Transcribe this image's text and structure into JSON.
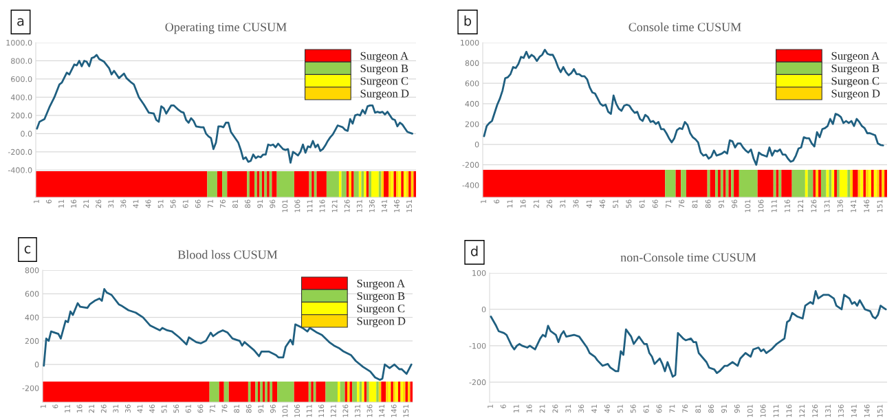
{
  "chart_data": [
    {
      "type": "line",
      "title": "Operating time CUSUM",
      "annotations": [
        "a"
      ],
      "grid": "y",
      "legend": "top right",
      "xlim": [
        0.5,
        153.5
      ],
      "xticks": [
        1,
        6,
        11,
        16,
        21,
        26,
        31,
        36,
        41,
        46,
        51,
        56,
        61,
        66,
        71,
        76,
        81,
        86,
        91,
        96,
        101,
        106,
        111,
        116,
        121,
        126,
        131,
        136,
        141,
        146,
        151
      ],
      "ylim": [
        -700,
        1000
      ],
      "yticks": [
        {
          "value": 1000,
          "label": "1000.0"
        },
        {
          "value": 800,
          "label": "800.0"
        },
        {
          "value": 600,
          "label": "600.0"
        },
        {
          "value": 400,
          "label": "400.0"
        },
        {
          "value": 200,
          "label": "200.0"
        },
        {
          "value": 0,
          "label": "0.0"
        },
        {
          "value": -200,
          "label": "-200.0"
        },
        {
          "value": -400,
          "label": "-400.0"
        }
      ],
      "series": [
        {
          "color": "#1f5f80",
          "x": [
            1,
            2,
            4,
            6,
            8,
            10,
            11,
            13,
            14,
            16,
            17,
            18,
            19,
            20,
            21,
            22,
            23,
            24,
            25,
            26,
            28,
            30,
            31,
            32,
            34,
            36,
            37,
            39,
            40,
            42,
            44,
            46,
            48,
            49,
            50,
            51,
            52,
            53,
            55,
            56,
            58,
            59,
            60,
            61,
            62,
            63,
            64,
            65,
            67,
            68,
            69,
            70,
            71,
            72,
            73,
            74,
            75,
            76,
            77,
            78,
            79,
            80,
            81,
            82,
            83,
            84,
            85,
            86,
            87,
            88,
            89,
            90,
            91,
            92,
            93,
            94,
            95,
            96,
            97,
            98,
            99,
            100,
            101,
            102,
            103,
            104,
            105,
            106,
            107,
            108,
            109,
            110,
            111,
            112,
            113,
            114,
            115,
            116,
            117,
            118,
            119,
            120,
            121,
            122,
            123,
            124,
            125,
            126,
            127,
            128,
            129,
            130,
            131,
            132,
            133,
            134,
            135,
            136,
            137,
            138,
            139,
            140,
            141,
            142,
            143,
            144,
            145,
            146,
            147,
            148,
            149,
            150,
            152
          ],
          "values": [
            55,
            130,
            160,
            290,
            400,
            540,
            560,
            670,
            650,
            760,
            750,
            800,
            740,
            800,
            790,
            740,
            830,
            840,
            865,
            820,
            790,
            720,
            650,
            690,
            610,
            660,
            610,
            560,
            540,
            400,
            320,
            230,
            220,
            150,
            130,
            300,
            280,
            220,
            310,
            310,
            260,
            240,
            230,
            150,
            120,
            170,
            140,
            80,
            70,
            70,
            0,
            -30,
            -50,
            -170,
            -100,
            80,
            80,
            70,
            120,
            120,
            20,
            -20,
            -60,
            -100,
            -180,
            -280,
            -260,
            -310,
            -300,
            -230,
            -270,
            -250,
            -260,
            -230,
            -230,
            -120,
            -130,
            -120,
            -150,
            -110,
            -140,
            -170,
            -180,
            -170,
            -320,
            -200,
            -220,
            -240,
            -200,
            -120,
            -210,
            -140,
            -150,
            -80,
            -150,
            -120,
            -190,
            -170,
            -130,
            -80,
            -40,
            -10,
            40,
            90,
            80,
            70,
            40,
            30,
            160,
            110,
            200,
            210,
            200,
            260,
            220,
            300,
            310,
            310,
            230,
            240,
            230,
            240,
            210,
            240,
            200,
            160,
            150,
            80,
            120,
            100,
            60,
            20,
            0
          ]
        }
      ],
      "bands": [
        {
          "axis": "x",
          "from": 0.5,
          "to": 69.5,
          "color": "#ff0000",
          "label": "Surgeon A"
        },
        {
          "axis": "x",
          "from": 69.5,
          "to": 73.5,
          "color": "#92d050",
          "label": "Surgeon B"
        },
        {
          "axis": "x",
          "from": 73.5,
          "to": 75.5,
          "color": "#ff0000"
        },
        {
          "axis": "x",
          "from": 75.5,
          "to": 77.5,
          "color": "#92d050"
        },
        {
          "axis": "x",
          "from": 77.5,
          "to": 85.5,
          "color": "#ff0000"
        },
        {
          "axis": "x",
          "from": 85.5,
          "to": 86.5,
          "color": "#92d050"
        },
        {
          "axis": "x",
          "from": 86.5,
          "to": 88.5,
          "color": "#ff0000"
        },
        {
          "axis": "x",
          "from": 88.5,
          "to": 89.5,
          "color": "#92d050"
        },
        {
          "axis": "x",
          "from": 89.5,
          "to": 90.5,
          "color": "#ff0000"
        },
        {
          "axis": "x",
          "from": 90.5,
          "to": 91.5,
          "color": "#92d050"
        },
        {
          "axis": "x",
          "from": 91.5,
          "to": 92.5,
          "color": "#ff0000"
        },
        {
          "axis": "x",
          "from": 92.5,
          "to": 93.5,
          "color": "#92d050"
        },
        {
          "axis": "x",
          "from": 93.5,
          "to": 94.5,
          "color": "#ff0000"
        },
        {
          "axis": "x",
          "from": 94.5,
          "to": 95.5,
          "color": "#92d050"
        },
        {
          "axis": "x",
          "from": 95.5,
          "to": 97.5,
          "color": "#ff0000"
        },
        {
          "axis": "x",
          "from": 97.5,
          "to": 104.5,
          "color": "#92d050"
        },
        {
          "axis": "x",
          "from": 104.5,
          "to": 110.5,
          "color": "#ff0000"
        },
        {
          "axis": "x",
          "from": 110.5,
          "to": 111.5,
          "color": "#92d050"
        },
        {
          "axis": "x",
          "from": 111.5,
          "to": 112.5,
          "color": "#ff0000"
        },
        {
          "axis": "x",
          "from": 112.5,
          "to": 113.5,
          "color": "#92d050"
        },
        {
          "axis": "x",
          "from": 113.5,
          "to": 117.5,
          "color": "#ff0000"
        },
        {
          "axis": "x",
          "from": 117.5,
          "to": 122.5,
          "color": "#92d050"
        },
        {
          "axis": "x",
          "from": 122.5,
          "to": 123.5,
          "color": "#ffff00",
          "label": "Surgeon C"
        },
        {
          "axis": "x",
          "from": 123.5,
          "to": 125.5,
          "color": "#92d050"
        },
        {
          "axis": "x",
          "from": 125.5,
          "to": 126.5,
          "color": "#ff0000"
        },
        {
          "axis": "x",
          "from": 126.5,
          "to": 127.5,
          "color": "#ffd700",
          "label": "Surgeon D"
        },
        {
          "axis": "x",
          "from": 127.5,
          "to": 128.5,
          "color": "#ff0000"
        },
        {
          "axis": "x",
          "from": 128.5,
          "to": 130.5,
          "color": "#92d050"
        },
        {
          "axis": "x",
          "from": 130.5,
          "to": 131.5,
          "color": "#ffff00"
        },
        {
          "axis": "x",
          "from": 131.5,
          "to": 132.5,
          "color": "#92d050"
        },
        {
          "axis": "x",
          "from": 132.5,
          "to": 133.5,
          "color": "#ffff00"
        },
        {
          "axis": "x",
          "from": 133.5,
          "to": 134.5,
          "color": "#ff0000"
        },
        {
          "axis": "x",
          "from": 134.5,
          "to": 135.5,
          "color": "#92d050"
        },
        {
          "axis": "x",
          "from": 135.5,
          "to": 138.5,
          "color": "#ffff00"
        },
        {
          "axis": "x",
          "from": 138.5,
          "to": 139.5,
          "color": "#92d050"
        },
        {
          "axis": "x",
          "from": 139.5,
          "to": 140.5,
          "color": "#ffd700"
        },
        {
          "axis": "x",
          "from": 140.5,
          "to": 142.5,
          "color": "#ff0000"
        },
        {
          "axis": "x",
          "from": 142.5,
          "to": 143.5,
          "color": "#ffd700"
        },
        {
          "axis": "x",
          "from": 143.5,
          "to": 144.5,
          "color": "#ffff00"
        },
        {
          "axis": "x",
          "from": 144.5,
          "to": 145.5,
          "color": "#ff0000"
        },
        {
          "axis": "x",
          "from": 145.5,
          "to": 146.5,
          "color": "#ffd700"
        },
        {
          "axis": "x",
          "from": 146.5,
          "to": 147.5,
          "color": "#ffff00"
        },
        {
          "axis": "x",
          "from": 147.5,
          "to": 148.5,
          "color": "#ff0000"
        },
        {
          "axis": "x",
          "from": 148.5,
          "to": 149.5,
          "color": "#ffff00"
        },
        {
          "axis": "x",
          "from": 149.5,
          "to": 150.5,
          "color": "#ffd700"
        },
        {
          "axis": "x",
          "from": 150.5,
          "to": 151.5,
          "color": "#ff0000"
        },
        {
          "axis": "x",
          "from": 151.5,
          "to": 152.5,
          "color": "#ffd700"
        },
        {
          "axis": "x",
          "from": 152.5,
          "to": 153.5,
          "color": "#ff0000"
        }
      ]
    },
    {
      "type": "line",
      "title": "Console time CUSUM",
      "annotations": [
        "b"
      ],
      "grid": "y",
      "legend": "top right",
      "xlim": [
        0.5,
        153.5
      ],
      "xticks": [
        1,
        6,
        11,
        16,
        21,
        26,
        31,
        36,
        41,
        46,
        51,
        56,
        61,
        66,
        71,
        76,
        81,
        86,
        91,
        96,
        101,
        106,
        111,
        116,
        121,
        126,
        131,
        136,
        141,
        146,
        151
      ],
      "ylim": [
        -520,
        1000
      ],
      "yticks": [
        1000,
        800,
        600,
        400,
        200,
        0,
        -200,
        -400
      ],
      "series": [
        {
          "color": "#1f5f80",
          "x": [
            1,
            2,
            3,
            4,
            6,
            7,
            8,
            9,
            10,
            11,
            12,
            13,
            14,
            15,
            16,
            17,
            18,
            19,
            20,
            21,
            22,
            23,
            24,
            25,
            26,
            27,
            28,
            29,
            30,
            31,
            32,
            33,
            34,
            35,
            36,
            37,
            38,
            39,
            40,
            41,
            42,
            43,
            44,
            45,
            46,
            47,
            48,
            49,
            50,
            51,
            52,
            53,
            54,
            55,
            56,
            57,
            58,
            59,
            60,
            61,
            62,
            63,
            64,
            65,
            66,
            67,
            68,
            69,
            70,
            71,
            72,
            73,
            74,
            75,
            76,
            77,
            78,
            79,
            80,
            81,
            82,
            83,
            84,
            85,
            86,
            87,
            88,
            89,
            90,
            91,
            92,
            93,
            94,
            95,
            96,
            97,
            98,
            99,
            100,
            101,
            102,
            103,
            104,
            105,
            106,
            107,
            108,
            109,
            110,
            111,
            112,
            113,
            114,
            115,
            116,
            117,
            118,
            119,
            120,
            121,
            122,
            123,
            124,
            125,
            126,
            127,
            128,
            129,
            130,
            131,
            132,
            133,
            134,
            135,
            136,
            137,
            138,
            139,
            140,
            141,
            142,
            143,
            144,
            145,
            146,
            147,
            148,
            149,
            150,
            151,
            152
          ],
          "values": [
            80,
            180,
            210,
            230,
            390,
            450,
            530,
            650,
            660,
            690,
            760,
            750,
            790,
            860,
            850,
            910,
            850,
            880,
            860,
            820,
            860,
            880,
            930,
            890,
            880,
            880,
            830,
            760,
            710,
            760,
            710,
            680,
            700,
            740,
            690,
            690,
            670,
            670,
            640,
            560,
            510,
            500,
            450,
            400,
            380,
            390,
            320,
            300,
            480,
            400,
            350,
            330,
            380,
            390,
            380,
            340,
            310,
            320,
            250,
            230,
            290,
            270,
            220,
            230,
            200,
            220,
            150,
            150,
            110,
            60,
            20,
            60,
            140,
            160,
            150,
            220,
            190,
            110,
            70,
            50,
            20,
            -80,
            -110,
            -100,
            -140,
            -120,
            -60,
            -110,
            -100,
            -90,
            -70,
            -90,
            40,
            30,
            -30,
            10,
            10,
            -30,
            -60,
            -80,
            -50,
            -140,
            -200,
            -80,
            -100,
            -110,
            -120,
            -30,
            -110,
            -60,
            -70,
            -50,
            -100,
            -100,
            -140,
            -170,
            -160,
            -110,
            -40,
            -30,
            70,
            60,
            60,
            10,
            -20,
            120,
            70,
            150,
            160,
            180,
            250,
            200,
            300,
            290,
            270,
            210,
            230,
            210,
            230,
            180,
            250,
            220,
            180,
            160,
            110,
            110,
            100,
            90,
            10,
            -5,
            -10
          ]
        }
      ],
      "bands": [
        {
          "axis": "x",
          "from": 0.5,
          "to": 69.5,
          "color": "#ff0000",
          "label": "Surgeon A"
        },
        {
          "axis": "x",
          "from": 69.5,
          "to": 73.5,
          "color": "#92d050",
          "label": "Surgeon B"
        },
        {
          "axis": "x",
          "from": 73.5,
          "to": 75.5,
          "color": "#ff0000"
        },
        {
          "axis": "x",
          "from": 75.5,
          "to": 77.5,
          "color": "#92d050"
        },
        {
          "axis": "x",
          "from": 77.5,
          "to": 85.5,
          "color": "#ff0000"
        },
        {
          "axis": "x",
          "from": 85.5,
          "to": 86.5,
          "color": "#92d050"
        },
        {
          "axis": "x",
          "from": 86.5,
          "to": 88.5,
          "color": "#ff0000"
        },
        {
          "axis": "x",
          "from": 88.5,
          "to": 89.5,
          "color": "#92d050"
        },
        {
          "axis": "x",
          "from": 89.5,
          "to": 90.5,
          "color": "#ff0000"
        },
        {
          "axis": "x",
          "from": 90.5,
          "to": 91.5,
          "color": "#92d050"
        },
        {
          "axis": "x",
          "from": 91.5,
          "to": 92.5,
          "color": "#ff0000"
        },
        {
          "axis": "x",
          "from": 92.5,
          "to": 93.5,
          "color": "#92d050"
        },
        {
          "axis": "x",
          "from": 93.5,
          "to": 94.5,
          "color": "#ff0000"
        },
        {
          "axis": "x",
          "from": 94.5,
          "to": 95.5,
          "color": "#92d050"
        },
        {
          "axis": "x",
          "from": 95.5,
          "to": 97.5,
          "color": "#ff0000"
        },
        {
          "axis": "x",
          "from": 97.5,
          "to": 104.5,
          "color": "#92d050"
        },
        {
          "axis": "x",
          "from": 104.5,
          "to": 110.5,
          "color": "#ff0000"
        },
        {
          "axis": "x",
          "from": 110.5,
          "to": 111.5,
          "color": "#92d050"
        },
        {
          "axis": "x",
          "from": 111.5,
          "to": 112.5,
          "color": "#ff0000"
        },
        {
          "axis": "x",
          "from": 112.5,
          "to": 113.5,
          "color": "#92d050"
        },
        {
          "axis": "x",
          "from": 113.5,
          "to": 117.5,
          "color": "#ff0000"
        },
        {
          "axis": "x",
          "from": 117.5,
          "to": 122.5,
          "color": "#92d050"
        },
        {
          "axis": "x",
          "from": 122.5,
          "to": 123.5,
          "color": "#ffff00",
          "label": "Surgeon C"
        },
        {
          "axis": "x",
          "from": 123.5,
          "to": 125.5,
          "color": "#92d050"
        },
        {
          "axis": "x",
          "from": 125.5,
          "to": 126.5,
          "color": "#ff0000"
        },
        {
          "axis": "x",
          "from": 126.5,
          "to": 127.5,
          "color": "#ffd700",
          "label": "Surgeon D"
        },
        {
          "axis": "x",
          "from": 127.5,
          "to": 128.5,
          "color": "#ff0000"
        },
        {
          "axis": "x",
          "from": 128.5,
          "to": 130.5,
          "color": "#92d050"
        },
        {
          "axis": "x",
          "from": 130.5,
          "to": 131.5,
          "color": "#ffff00"
        },
        {
          "axis": "x",
          "from": 131.5,
          "to": 132.5,
          "color": "#92d050"
        },
        {
          "axis": "x",
          "from": 132.5,
          "to": 133.5,
          "color": "#ffff00"
        },
        {
          "axis": "x",
          "from": 133.5,
          "to": 134.5,
          "color": "#ff0000"
        },
        {
          "axis": "x",
          "from": 134.5,
          "to": 135.5,
          "color": "#92d050"
        },
        {
          "axis": "x",
          "from": 135.5,
          "to": 138.5,
          "color": "#ffff00"
        },
        {
          "axis": "x",
          "from": 138.5,
          "to": 139.5,
          "color": "#92d050"
        },
        {
          "axis": "x",
          "from": 139.5,
          "to": 140.5,
          "color": "#ffd700"
        },
        {
          "axis": "x",
          "from": 140.5,
          "to": 142.5,
          "color": "#ff0000"
        },
        {
          "axis": "x",
          "from": 142.5,
          "to": 143.5,
          "color": "#ffd700"
        },
        {
          "axis": "x",
          "from": 143.5,
          "to": 144.5,
          "color": "#ffff00"
        },
        {
          "axis": "x",
          "from": 144.5,
          "to": 145.5,
          "color": "#ff0000"
        },
        {
          "axis": "x",
          "from": 145.5,
          "to": 146.5,
          "color": "#ffd700"
        },
        {
          "axis": "x",
          "from": 146.5,
          "to": 147.5,
          "color": "#ffff00"
        },
        {
          "axis": "x",
          "from": 147.5,
          "to": 148.5,
          "color": "#ff0000"
        },
        {
          "axis": "x",
          "from": 148.5,
          "to": 149.5,
          "color": "#ffff00"
        },
        {
          "axis": "x",
          "from": 149.5,
          "to": 150.5,
          "color": "#ffd700"
        },
        {
          "axis": "x",
          "from": 150.5,
          "to": 151.5,
          "color": "#ff0000"
        },
        {
          "axis": "x",
          "from": 151.5,
          "to": 152.5,
          "color": "#ffd700"
        },
        {
          "axis": "x",
          "from": 152.5,
          "to": 153.5,
          "color": "#ff0000"
        }
      ]
    },
    {
      "type": "line",
      "title": "Blood loss CUSUM",
      "annotations": [
        "c"
      ],
      "grid": "y",
      "legend": "top right",
      "xlim": [
        0.5,
        153.5
      ],
      "xticks": [
        1,
        6,
        11,
        16,
        21,
        26,
        31,
        36,
        41,
        46,
        51,
        56,
        61,
        66,
        71,
        76,
        81,
        86,
        91,
        96,
        101,
        106,
        111,
        116,
        121,
        126,
        131,
        136,
        141,
        146,
        151
      ],
      "ylim": [
        -320,
        800
      ],
      "yticks": [
        800,
        600,
        400,
        200,
        0,
        -200
      ],
      "series": [
        {
          "color": "#1f5f80",
          "x": [
            1,
            2,
            3,
            4,
            7,
            8,
            10,
            11,
            12,
            13,
            15,
            16,
            19,
            20,
            22,
            24,
            25,
            26,
            27,
            29,
            32,
            33,
            36,
            39,
            42,
            45,
            49,
            50,
            52,
            54,
            57,
            60,
            61,
            64,
            66,
            68,
            70,
            71,
            73,
            75,
            77,
            79,
            82,
            83,
            84,
            88,
            90,
            91,
            94,
            97,
            98,
            100,
            101,
            103,
            104,
            105,
            108,
            110,
            111,
            114,
            116,
            119,
            121,
            123,
            125,
            128,
            130,
            133,
            136,
            138,
            140,
            141,
            142,
            144,
            146,
            148,
            149,
            151,
            153
          ],
          "values": [
            -10,
            220,
            200,
            280,
            260,
            220,
            370,
            360,
            450,
            420,
            520,
            490,
            480,
            510,
            540,
            560,
            540,
            640,
            610,
            590,
            510,
            500,
            460,
            440,
            400,
            330,
            290,
            310,
            290,
            280,
            230,
            170,
            230,
            190,
            180,
            200,
            270,
            240,
            270,
            290,
            270,
            220,
            200,
            160,
            190,
            120,
            70,
            110,
            110,
            80,
            60,
            60,
            150,
            210,
            170,
            340,
            310,
            280,
            310,
            270,
            250,
            190,
            160,
            140,
            110,
            80,
            30,
            -20,
            -60,
            -110,
            -130,
            -120,
            0,
            -30,
            0,
            -40,
            -40,
            -80,
            0
          ]
        }
      ],
      "bands": [
        {
          "axis": "x",
          "from": 0.5,
          "to": 69.5,
          "color": "#ff0000",
          "label": "Surgeon A"
        },
        {
          "axis": "x",
          "from": 69.5,
          "to": 73.5,
          "color": "#92d050",
          "label": "Surgeon B"
        },
        {
          "axis": "x",
          "from": 73.5,
          "to": 75.5,
          "color": "#ff0000"
        },
        {
          "axis": "x",
          "from": 75.5,
          "to": 77.5,
          "color": "#92d050"
        },
        {
          "axis": "x",
          "from": 77.5,
          "to": 85.5,
          "color": "#ff0000"
        },
        {
          "axis": "x",
          "from": 85.5,
          "to": 86.5,
          "color": "#92d050"
        },
        {
          "axis": "x",
          "from": 86.5,
          "to": 88.5,
          "color": "#ff0000"
        },
        {
          "axis": "x",
          "from": 88.5,
          "to": 89.5,
          "color": "#92d050"
        },
        {
          "axis": "x",
          "from": 89.5,
          "to": 90.5,
          "color": "#ff0000"
        },
        {
          "axis": "x",
          "from": 90.5,
          "to": 91.5,
          "color": "#92d050"
        },
        {
          "axis": "x",
          "from": 91.5,
          "to": 92.5,
          "color": "#ff0000"
        },
        {
          "axis": "x",
          "from": 92.5,
          "to": 93.5,
          "color": "#92d050"
        },
        {
          "axis": "x",
          "from": 93.5,
          "to": 94.5,
          "color": "#ff0000"
        },
        {
          "axis": "x",
          "from": 94.5,
          "to": 95.5,
          "color": "#92d050"
        },
        {
          "axis": "x",
          "from": 95.5,
          "to": 97.5,
          "color": "#ff0000"
        },
        {
          "axis": "x",
          "from": 97.5,
          "to": 104.5,
          "color": "#92d050"
        },
        {
          "axis": "x",
          "from": 104.5,
          "to": 110.5,
          "color": "#ff0000"
        },
        {
          "axis": "x",
          "from": 110.5,
          "to": 111.5,
          "color": "#92d050"
        },
        {
          "axis": "x",
          "from": 111.5,
          "to": 112.5,
          "color": "#ff0000"
        },
        {
          "axis": "x",
          "from": 112.5,
          "to": 113.5,
          "color": "#92d050"
        },
        {
          "axis": "x",
          "from": 113.5,
          "to": 117.5,
          "color": "#ff0000"
        },
        {
          "axis": "x",
          "from": 117.5,
          "to": 122.5,
          "color": "#92d050"
        },
        {
          "axis": "x",
          "from": 122.5,
          "to": 123.5,
          "color": "#ffff00",
          "label": "Surgeon C"
        },
        {
          "axis": "x",
          "from": 123.5,
          "to": 125.5,
          "color": "#92d050"
        },
        {
          "axis": "x",
          "from": 125.5,
          "to": 126.5,
          "color": "#ff0000"
        },
        {
          "axis": "x",
          "from": 126.5,
          "to": 127.5,
          "color": "#ffd700",
          "label": "Surgeon D"
        },
        {
          "axis": "x",
          "from": 127.5,
          "to": 128.5,
          "color": "#ff0000"
        },
        {
          "axis": "x",
          "from": 128.5,
          "to": 130.5,
          "color": "#92d050"
        },
        {
          "axis": "x",
          "from": 130.5,
          "to": 131.5,
          "color": "#ffff00"
        },
        {
          "axis": "x",
          "from": 131.5,
          "to": 132.5,
          "color": "#92d050"
        },
        {
          "axis": "x",
          "from": 132.5,
          "to": 133.5,
          "color": "#ffff00"
        },
        {
          "axis": "x",
          "from": 133.5,
          "to": 134.5,
          "color": "#ff0000"
        },
        {
          "axis": "x",
          "from": 134.5,
          "to": 135.5,
          "color": "#92d050"
        },
        {
          "axis": "x",
          "from": 135.5,
          "to": 138.5,
          "color": "#ffff00"
        },
        {
          "axis": "x",
          "from": 138.5,
          "to": 139.5,
          "color": "#92d050"
        },
        {
          "axis": "x",
          "from": 139.5,
          "to": 140.5,
          "color": "#ffd700"
        },
        {
          "axis": "x",
          "from": 140.5,
          "to": 142.5,
          "color": "#ff0000"
        },
        {
          "axis": "x",
          "from": 142.5,
          "to": 143.5,
          "color": "#ffd700"
        },
        {
          "axis": "x",
          "from": 143.5,
          "to": 144.5,
          "color": "#ffff00"
        },
        {
          "axis": "x",
          "from": 144.5,
          "to": 145.5,
          "color": "#ff0000"
        },
        {
          "axis": "x",
          "from": 145.5,
          "to": 146.5,
          "color": "#ffd700"
        },
        {
          "axis": "x",
          "from": 146.5,
          "to": 147.5,
          "color": "#ffff00"
        },
        {
          "axis": "x",
          "from": 147.5,
          "to": 148.5,
          "color": "#ff0000"
        },
        {
          "axis": "x",
          "from": 148.5,
          "to": 149.5,
          "color": "#ffff00"
        },
        {
          "axis": "x",
          "from": 149.5,
          "to": 150.5,
          "color": "#ffd700"
        },
        {
          "axis": "x",
          "from": 150.5,
          "to": 151.5,
          "color": "#ff0000"
        },
        {
          "axis": "x",
          "from": 151.5,
          "to": 152.5,
          "color": "#ffd700"
        },
        {
          "axis": "x",
          "from": 152.5,
          "to": 153.5,
          "color": "#ff0000"
        }
      ]
    },
    {
      "type": "line",
      "title": "non-Console time CUSUM",
      "annotations": [
        "d"
      ],
      "grid": "y",
      "xlim": [
        0.5,
        153.5
      ],
      "xticks": [
        1,
        6,
        11,
        16,
        21,
        26,
        31,
        36,
        41,
        46,
        51,
        56,
        61,
        66,
        71,
        76,
        81,
        86,
        91,
        96,
        101,
        106,
        111,
        116,
        121,
        126,
        131,
        136,
        141,
        146,
        151
      ],
      "ylim": [
        -255,
        100
      ],
      "yticks": [
        100,
        0,
        -100,
        -200
      ],
      "series": [
        {
          "color": "#1f5f80",
          "x": [
            1,
            3,
            4,
            6,
            7,
            9,
            10,
            11,
            12,
            13,
            15,
            16,
            17,
            18,
            20,
            21,
            22,
            23,
            24,
            26,
            27,
            28,
            29,
            30,
            33,
            35,
            38,
            39,
            41,
            42,
            44,
            46,
            47,
            49,
            50,
            51,
            52,
            53,
            55,
            56,
            58,
            60,
            61,
            62,
            63,
            64,
            66,
            67,
            68,
            69,
            70,
            71,
            72,
            73,
            75,
            76,
            78,
            79,
            80,
            81,
            84,
            85,
            87,
            88,
            89,
            91,
            92,
            94,
            95,
            96,
            97,
            99,
            101,
            102,
            104,
            105,
            106,
            107,
            109,
            111,
            112,
            114,
            115,
            116,
            117,
            118,
            119,
            121,
            122,
            124,
            125,
            126,
            127,
            129,
            131,
            133,
            134,
            136,
            137,
            139,
            140,
            141,
            142,
            143,
            145,
            147,
            148,
            149,
            150,
            151,
            152,
            153
          ],
          "values": [
            -20,
            -45,
            -60,
            -65,
            -70,
            -100,
            -110,
            -100,
            -95,
            -100,
            -105,
            -100,
            -105,
            -110,
            -80,
            -70,
            -75,
            -45,
            -60,
            -70,
            -90,
            -70,
            -60,
            -75,
            -70,
            -75,
            -105,
            -120,
            -130,
            -140,
            -155,
            -150,
            -160,
            -170,
            -170,
            -115,
            -125,
            -55,
            -75,
            -95,
            -75,
            -95,
            -95,
            -120,
            -130,
            -150,
            -135,
            -150,
            -170,
            -145,
            -165,
            -185,
            -180,
            -65,
            -80,
            -85,
            -80,
            -90,
            -90,
            -120,
            -145,
            -160,
            -165,
            -175,
            -170,
            -155,
            -155,
            -145,
            -150,
            -155,
            -135,
            -120,
            -130,
            -110,
            -105,
            -115,
            -110,
            -120,
            -110,
            -95,
            -90,
            -80,
            -35,
            -30,
            -10,
            -15,
            -20,
            -25,
            10,
            20,
            15,
            50,
            30,
            40,
            40,
            30,
            10,
            0,
            40,
            30,
            15,
            20,
            10,
            25,
            0,
            -5,
            -20,
            -25,
            -15,
            10,
            5,
            0
          ]
        }
      ]
    }
  ]
}
